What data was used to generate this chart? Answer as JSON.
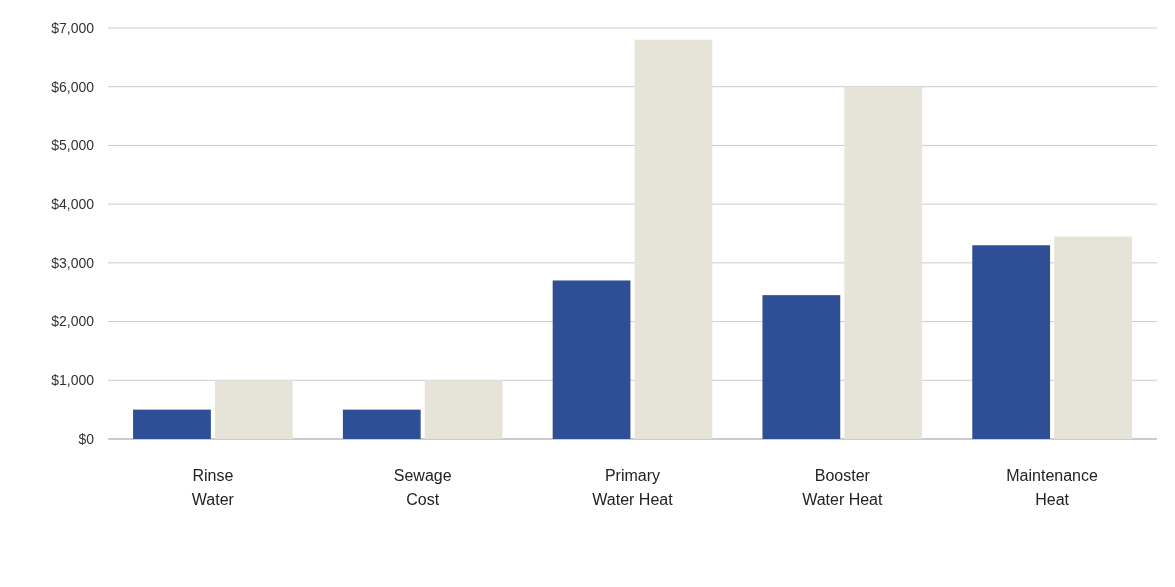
{
  "chart_data": {
    "type": "bar",
    "categories": [
      "Rinse\nWater",
      "Sewage\nCost",
      "Primary\nWater Heat",
      "Booster\nWater Heat",
      "Maintenance\nHeat"
    ],
    "series": [
      {
        "color": "#2e4f95",
        "values": [
          500,
          500,
          2700,
          2450,
          3300
        ]
      },
      {
        "color": "#e6e4d8",
        "values": [
          1000,
          1000,
          6800,
          6000,
          3450
        ]
      }
    ],
    "ylim": [
      0,
      7000
    ],
    "yticks": [
      {
        "value": 0,
        "label": "$0"
      },
      {
        "value": 1000,
        "label": "$1,000"
      },
      {
        "value": 2000,
        "label": "$2,000"
      },
      {
        "value": 3000,
        "label": "$3,000"
      },
      {
        "value": 4000,
        "label": "$4,000"
      },
      {
        "value": 5000,
        "label": "$5,000"
      },
      {
        "value": 6000,
        "label": "$6,000"
      },
      {
        "value": 7000,
        "label": "$7,000"
      }
    ],
    "grid": "y"
  }
}
